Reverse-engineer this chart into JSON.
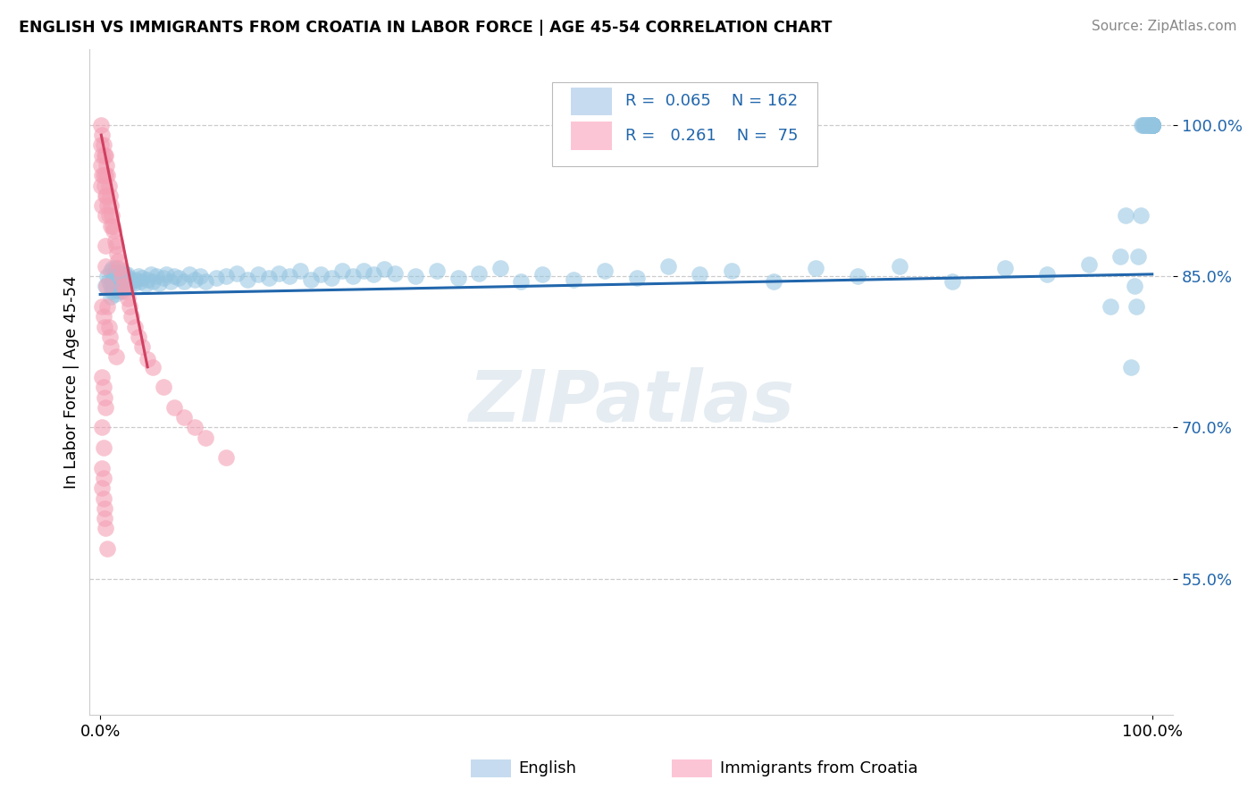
{
  "title": "ENGLISH VS IMMIGRANTS FROM CROATIA IN LABOR FORCE | AGE 45-54 CORRELATION CHART",
  "source": "Source: ZipAtlas.com",
  "ylabel": "In Labor Force | Age 45-54",
  "english_R": "0.065",
  "english_N": "162",
  "croatia_R": "0.261",
  "croatia_N": "75",
  "blue_scatter_color": "#93c4e0",
  "pink_scatter_color": "#f4a0b5",
  "blue_line_color": "#2166ac",
  "pink_line_color": "#d04060",
  "legend_blue_fill": "#c6dbef",
  "legend_pink_fill": "#fcc5d5",
  "watermark": "ZIPatlas",
  "eng_cluster_x": [
    0.005,
    0.007,
    0.008,
    0.01,
    0.01,
    0.01,
    0.011,
    0.012,
    0.012,
    0.013,
    0.013,
    0.014,
    0.014,
    0.015,
    0.015,
    0.015,
    0.016,
    0.016,
    0.017,
    0.017,
    0.018,
    0.018,
    0.019,
    0.019,
    0.02,
    0.02,
    0.02,
    0.021,
    0.021,
    0.022,
    0.022,
    0.023,
    0.023,
    0.024,
    0.025,
    0.025,
    0.026,
    0.027,
    0.028,
    0.03,
    0.032,
    0.034,
    0.036,
    0.038,
    0.04,
    0.043,
    0.045,
    0.048,
    0.05,
    0.053,
    0.056,
    0.06,
    0.063,
    0.067,
    0.07,
    0.075,
    0.08,
    0.085,
    0.09,
    0.095,
    0.1,
    0.11,
    0.12,
    0.13,
    0.14,
    0.15,
    0.16,
    0.17,
    0.18,
    0.19,
    0.2,
    0.21,
    0.22,
    0.23,
    0.24,
    0.25,
    0.26,
    0.27,
    0.28,
    0.3,
    0.32,
    0.34,
    0.36,
    0.38,
    0.4,
    0.42,
    0.45,
    0.48,
    0.51,
    0.54,
    0.57,
    0.6,
    0.64,
    0.68,
    0.72,
    0.76,
    0.81,
    0.86,
    0.9,
    0.94,
    0.96,
    0.97,
    0.975,
    0.98,
    0.983,
    0.985,
    0.987,
    0.989,
    0.99,
    0.991,
    0.992,
    0.993,
    0.994,
    0.995,
    0.996,
    0.997,
    0.998,
    0.999,
    1.0,
    1.0,
    1.0,
    1.0,
    1.0,
    1.0,
    1.0,
    1.0,
    1.0,
    1.0,
    1.0,
    1.0,
    1.0,
    1.0,
    1.0,
    1.0,
    1.0,
    1.0,
    1.0,
    1.0,
    1.0,
    1.0,
    1.0,
    1.0,
    1.0,
    1.0,
    1.0,
    1.0,
    1.0,
    1.0,
    1.0,
    1.0,
    1.0,
    1.0,
    1.0,
    1.0,
    1.0,
    1.0,
    1.0,
    1.0,
    1.0,
    1.0,
    1.0,
    1.0
  ],
  "eng_cluster_y": [
    0.84,
    0.85,
    0.845,
    0.83,
    0.84,
    0.855,
    0.835,
    0.845,
    0.858,
    0.838,
    0.848,
    0.832,
    0.852,
    0.837,
    0.847,
    0.858,
    0.84,
    0.852,
    0.843,
    0.854,
    0.836,
    0.847,
    0.842,
    0.853,
    0.835,
    0.845,
    0.855,
    0.84,
    0.85,
    0.838,
    0.848,
    0.843,
    0.853,
    0.847,
    0.84,
    0.852,
    0.845,
    0.848,
    0.842,
    0.846,
    0.843,
    0.847,
    0.85,
    0.845,
    0.848,
    0.842,
    0.847,
    0.852,
    0.845,
    0.85,
    0.843,
    0.848,
    0.852,
    0.845,
    0.85,
    0.848,
    0.845,
    0.852,
    0.847,
    0.85,
    0.845,
    0.848,
    0.85,
    0.853,
    0.847,
    0.852,
    0.848,
    0.853,
    0.85,
    0.855,
    0.847,
    0.852,
    0.848,
    0.855,
    0.85,
    0.855,
    0.852,
    0.857,
    0.853,
    0.85,
    0.855,
    0.848,
    0.853,
    0.858,
    0.845,
    0.852,
    0.847,
    0.855,
    0.848,
    0.86,
    0.852,
    0.855,
    0.845,
    0.858,
    0.85,
    0.86,
    0.845,
    0.858,
    0.852,
    0.862,
    0.82,
    0.87,
    0.91,
    0.76,
    0.84,
    0.82,
    0.87,
    0.91,
    1.0,
    1.0,
    1.0,
    1.0,
    1.0,
    1.0,
    1.0,
    1.0,
    1.0,
    1.0,
    1.0,
    1.0,
    1.0,
    1.0,
    1.0,
    1.0,
    1.0,
    1.0,
    1.0,
    1.0,
    1.0,
    1.0,
    1.0,
    1.0,
    1.0,
    1.0,
    1.0,
    1.0,
    1.0,
    1.0,
    1.0,
    1.0,
    1.0,
    1.0,
    1.0,
    1.0,
    1.0,
    1.0,
    1.0,
    1.0,
    1.0,
    1.0,
    1.0,
    1.0,
    1.0,
    1.0,
    1.0,
    1.0,
    1.0,
    1.0,
    1.0,
    1.0,
    1.0,
    1.0
  ],
  "cr_x": [
    0.001,
    0.001,
    0.001,
    0.001,
    0.002,
    0.002,
    0.002,
    0.002,
    0.003,
    0.003,
    0.004,
    0.004,
    0.005,
    0.005,
    0.005,
    0.005,
    0.005,
    0.006,
    0.006,
    0.007,
    0.007,
    0.008,
    0.008,
    0.009,
    0.01,
    0.01,
    0.011,
    0.012,
    0.013,
    0.014,
    0.015,
    0.016,
    0.017,
    0.018,
    0.02,
    0.022,
    0.024,
    0.026,
    0.028,
    0.03,
    0.033,
    0.036,
    0.04,
    0.045,
    0.005,
    0.002,
    0.003,
    0.004,
    0.006,
    0.007,
    0.008,
    0.009,
    0.01,
    0.015,
    0.002,
    0.003,
    0.004,
    0.005,
    0.05,
    0.06,
    0.07,
    0.08,
    0.09,
    0.1,
    0.12,
    0.002,
    0.003,
    0.002,
    0.002,
    0.003,
    0.003,
    0.004,
    0.004,
    0.005,
    0.007
  ],
  "cr_y": [
    1.0,
    0.98,
    0.96,
    0.94,
    0.99,
    0.97,
    0.95,
    0.92,
    0.98,
    0.95,
    0.97,
    0.94,
    0.97,
    0.95,
    0.93,
    0.91,
    0.88,
    0.96,
    0.93,
    0.95,
    0.92,
    0.94,
    0.91,
    0.93,
    0.92,
    0.9,
    0.91,
    0.9,
    0.895,
    0.885,
    0.88,
    0.872,
    0.865,
    0.858,
    0.85,
    0.84,
    0.835,
    0.828,
    0.82,
    0.81,
    0.8,
    0.79,
    0.78,
    0.768,
    0.86,
    0.82,
    0.81,
    0.8,
    0.84,
    0.82,
    0.8,
    0.79,
    0.78,
    0.77,
    0.75,
    0.74,
    0.73,
    0.72,
    0.76,
    0.74,
    0.72,
    0.71,
    0.7,
    0.69,
    0.67,
    0.7,
    0.68,
    0.66,
    0.64,
    0.65,
    0.63,
    0.62,
    0.61,
    0.6,
    0.58
  ],
  "eng_trendline": [
    0.832,
    0.852
  ],
  "cr_trendline_x": [
    0.001,
    0.045
  ],
  "cr_trendline_y": [
    0.99,
    0.76
  ],
  "xlim": [
    -0.01,
    1.02
  ],
  "ylim": [
    0.415,
    1.075
  ],
  "yticks": [
    0.55,
    0.7,
    0.85,
    1.0
  ],
  "ytick_labels": [
    "55.0%",
    "70.0%",
    "85.0%",
    "100.0%"
  ],
  "xtick_labels": [
    "0.0%",
    "100.0%"
  ]
}
